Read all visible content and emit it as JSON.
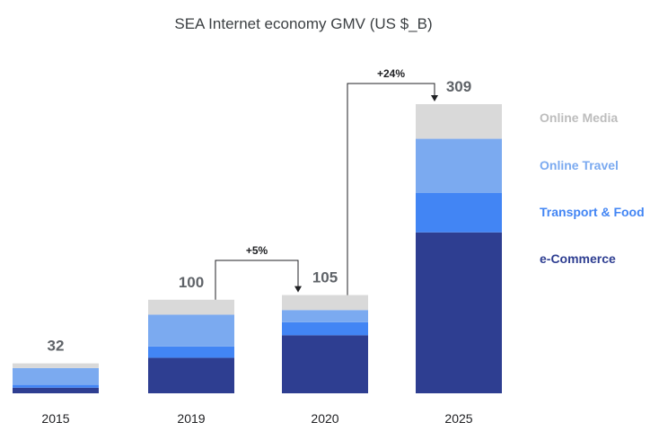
{
  "chart_data": {
    "type": "bar",
    "stacked": true,
    "title": "SEA Internet economy GMV (US $_B)",
    "xlabel": "",
    "ylabel": "",
    "categories": [
      "2015",
      "2019",
      "2020",
      "2025"
    ],
    "totals": [
      "32",
      "100",
      "105",
      "309"
    ],
    "series": [
      {
        "name": "e-Commerce",
        "color": "#2e3e91",
        "values": [
          6,
          38,
          62,
          172
        ]
      },
      {
        "name": "Transport & Food",
        "color": "#4285f4",
        "values": [
          3,
          12,
          14,
          42
        ]
      },
      {
        "name": "Online Travel",
        "color": "#7baaf0",
        "values": [
          18,
          34,
          13,
          58
        ]
      },
      {
        "name": "Online Media",
        "color": "#d9d9d9",
        "values": [
          5,
          16,
          16,
          37
        ]
      }
    ],
    "growth_annotations": [
      {
        "from": "2019",
        "to": "2020",
        "label": "+5%"
      },
      {
        "from": "2020",
        "to": "2025",
        "label": "+24%"
      }
    ],
    "ylim": [
      0,
      309
    ],
    "grid": false,
    "legend_position": "right"
  }
}
